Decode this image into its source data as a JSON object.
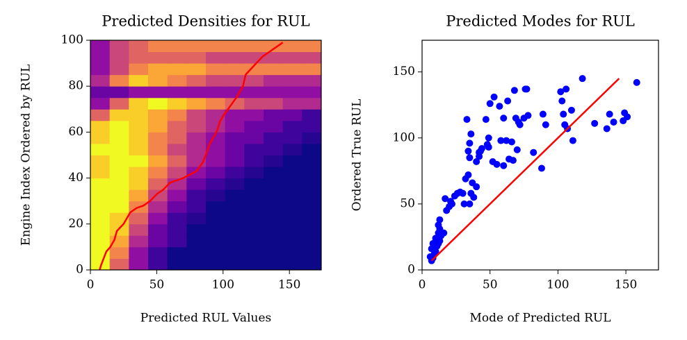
{
  "chart_data": [
    {
      "type": "heatmap",
      "title": "Predicted Densities for RUL",
      "xlabel": "Predicted RUL Values",
      "ylabel": "Engine Index Ordered by RUL",
      "xlim": [
        0,
        174
      ],
      "ylim": [
        0,
        100
      ],
      "xticks": [
        0,
        50,
        100,
        150
      ],
      "yticks": [
        0,
        20,
        40,
        60,
        80,
        100
      ],
      "colormap": "plasma",
      "values": [
        [
          1,
          0.6,
          0.3,
          0.1,
          0,
          0,
          0,
          0,
          0,
          0,
          0,
          0
        ],
        [
          1,
          0.7,
          0.3,
          0.1,
          0,
          0,
          0,
          0,
          0,
          0,
          0,
          0
        ],
        [
          1,
          0.8,
          0.4,
          0.2,
          0.1,
          0,
          0,
          0,
          0,
          0,
          0,
          0
        ],
        [
          1,
          0.9,
          0.5,
          0.2,
          0.1,
          0,
          0,
          0,
          0,
          0,
          0,
          0
        ],
        [
          1,
          0.9,
          0.6,
          0.3,
          0.1,
          0.05,
          0,
          0,
          0,
          0,
          0,
          0
        ],
        [
          1,
          1,
          0.7,
          0.4,
          0.2,
          0.1,
          0,
          0,
          0,
          0,
          0,
          0
        ],
        [
          1,
          1,
          0.8,
          0.5,
          0.3,
          0.1,
          0.05,
          0,
          0,
          0,
          0,
          0
        ],
        [
          1,
          1,
          0.9,
          0.6,
          0.4,
          0.2,
          0.1,
          0.05,
          0,
          0,
          0,
          0
        ],
        [
          0.9,
          1,
          0.9,
          0.7,
          0.5,
          0.3,
          0.2,
          0.1,
          0.05,
          0,
          0,
          0
        ],
        [
          0.9,
          1,
          1,
          0.8,
          0.6,
          0.4,
          0.3,
          0.2,
          0.1,
          0.05,
          0,
          0
        ],
        [
          1,
          1,
          0.9,
          0.7,
          0.5,
          0.4,
          0.3,
          0.2,
          0.1,
          0.1,
          0.05,
          0
        ],
        [
          0.9,
          1,
          0.9,
          0.7,
          0.6,
          0.4,
          0.3,
          0.2,
          0.2,
          0.1,
          0.1,
          0.05
        ],
        [
          0.9,
          1,
          0.9,
          0.8,
          0.6,
          0.5,
          0.4,
          0.3,
          0.2,
          0.2,
          0.1,
          0.1
        ],
        [
          0.6,
          0.9,
          0.9,
          0.8,
          0.7,
          0.5,
          0.4,
          0.3,
          0.3,
          0.2,
          0.2,
          0.1
        ],
        [
          0.3,
          0.6,
          0.9,
          1,
          0.9,
          0.8,
          0.7,
          0.6,
          0.5,
          0.5,
          0.4,
          0.4
        ],
        [
          0.2,
          0.2,
          0.3,
          0.3,
          0.3,
          0.3,
          0.3,
          0.3,
          0.3,
          0.3,
          0.3,
          0.3
        ],
        [
          0.4,
          0.7,
          0.9,
          0.8,
          0.7,
          0.6,
          0.5,
          0.5,
          0.5,
          0.4,
          0.4,
          0.4
        ],
        [
          0.3,
          0.5,
          0.7,
          0.8,
          0.8,
          0.8,
          0.7,
          0.7,
          0.7,
          0.7,
          0.7,
          0.7
        ],
        [
          0.3,
          0.5,
          0.6,
          0.6,
          0.6,
          0.6,
          0.5,
          0.5,
          0.5,
          0.5,
          0.5,
          0.5
        ],
        [
          0.3,
          0.5,
          0.6,
          0.7,
          0.7,
          0.7,
          0.7,
          0.7,
          0.7,
          0.7,
          0.7,
          0.7
        ]
      ],
      "line": {
        "color": "#ff0000",
        "x": [
          7,
          8,
          10,
          12,
          15,
          18,
          20,
          25,
          28,
          30,
          35,
          40,
          45,
          50,
          55,
          60,
          70,
          80,
          85,
          90,
          95,
          98,
          100,
          110,
          115,
          117,
          125,
          130,
          140,
          145
        ],
        "y": [
          0,
          2,
          5,
          8,
          10,
          13,
          17,
          20,
          23,
          25,
          27,
          28,
          30,
          33,
          35,
          38,
          40,
          43,
          47,
          55,
          60,
          65,
          67,
          75,
          80,
          85,
          90,
          93,
          97,
          99
        ]
      }
    },
    {
      "type": "scatter",
      "title": "Predicted Modes for RUL",
      "xlabel": "Mode of Predicted RUL",
      "ylabel": "Ordered True RUL",
      "xlim": [
        0,
        174
      ],
      "ylim": [
        0,
        174
      ],
      "xticks": [
        0,
        50,
        100,
        150
      ],
      "yticks": [
        0,
        50,
        100,
        150
      ],
      "color": "#0000ff",
      "x": [
        7,
        8,
        6,
        9,
        10,
        7,
        11,
        8,
        12,
        13,
        10,
        14,
        12,
        16,
        13,
        12,
        13,
        18,
        17,
        20,
        22,
        21,
        24,
        26,
        28,
        30,
        31,
        32,
        33,
        34,
        35,
        36,
        35,
        37,
        34,
        36,
        38,
        35,
        40,
        40,
        42,
        42,
        44,
        43,
        47,
        48,
        49,
        49,
        50,
        52,
        53,
        55,
        57,
        58,
        60,
        60,
        62,
        63,
        64,
        66,
        67,
        68,
        69,
        70,
        71,
        72,
        75,
        76,
        77,
        78,
        82,
        88,
        89,
        91,
        102,
        103,
        104,
        105,
        106,
        107,
        110,
        111,
        118,
        127,
        136,
        138,
        141,
        148,
        149,
        151,
        158
      ],
      "y": [
        7,
        9,
        10,
        12,
        14,
        16,
        18,
        20,
        20,
        22,
        24,
        26,
        28,
        28,
        31,
        34,
        38,
        45,
        54,
        48,
        50,
        52,
        56,
        58,
        59,
        58,
        50,
        69,
        114,
        90,
        96,
        103,
        85,
        66,
        72,
        58,
        55,
        50,
        63,
        82,
        86,
        89,
        92,
        90,
        114,
        95,
        100,
        93,
        126,
        82,
        131,
        80,
        124,
        98,
        79,
        115,
        98,
        128,
        84,
        97,
        83,
        136,
        115,
        91,
        112,
        110,
        115,
        137,
        137,
        117,
        89,
        77,
        118,
        110,
        135,
        128,
        118,
        110,
        137,
        107,
        121,
        98,
        145,
        111,
        107,
        118,
        112,
        113,
        119,
        116,
        142
      ],
      "line": {
        "color": "#ff0000",
        "x": [
          7,
          145
        ],
        "y": [
          7,
          145
        ]
      }
    }
  ]
}
